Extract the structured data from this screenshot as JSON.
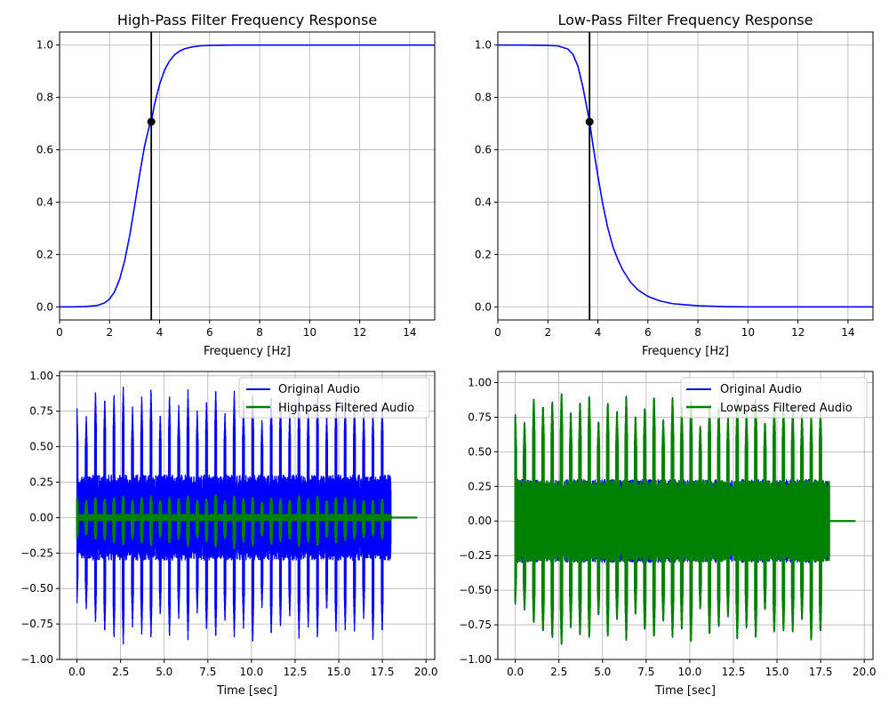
{
  "figure": {
    "background": "#ffffff"
  },
  "chart_data": [
    {
      "type": "line",
      "title": "High-Pass Filter Frequency Response",
      "xlabel": "Frequency [Hz]",
      "ylabel": "",
      "xlim": [
        0,
        15
      ],
      "ylim": [
        -0.05,
        1.05
      ],
      "xticks": [
        0,
        2,
        4,
        6,
        8,
        10,
        12,
        14
      ],
      "yticks": [
        0.0,
        0.2,
        0.4,
        0.6,
        0.8,
        1.0
      ],
      "grid": true,
      "cutoff_hz": 3.667,
      "cutoff_gain": 0.7071,
      "series": [
        {
          "color": "#0000ff",
          "x": [
            0,
            0.5,
            1.0,
            1.5,
            1.8,
            2.0,
            2.2,
            2.4,
            2.6,
            2.8,
            3.0,
            3.2,
            3.4,
            3.6,
            3.667,
            3.8,
            4.0,
            4.2,
            4.4,
            4.6,
            4.8,
            5.0,
            5.3,
            5.6,
            6.0,
            7.0,
            8.0,
            10.0,
            12.0,
            15.0
          ],
          "y": [
            0.0,
            0.0,
            0.001,
            0.005,
            0.015,
            0.03,
            0.058,
            0.105,
            0.175,
            0.27,
            0.385,
            0.505,
            0.615,
            0.695,
            0.7071,
            0.775,
            0.85,
            0.905,
            0.94,
            0.963,
            0.977,
            0.986,
            0.993,
            0.997,
            0.999,
            1.0,
            1.0,
            1.0,
            1.0,
            1.0
          ]
        }
      ]
    },
    {
      "type": "line",
      "title": "Low-Pass Filter Frequency Response",
      "xlabel": "Frequency [Hz]",
      "ylabel": "",
      "xlim": [
        0,
        15
      ],
      "ylim": [
        -0.05,
        1.05
      ],
      "xticks": [
        0,
        2,
        4,
        6,
        8,
        10,
        12,
        14
      ],
      "yticks": [
        0.0,
        0.2,
        0.4,
        0.6,
        0.8,
        1.0
      ],
      "grid": true,
      "cutoff_hz": 3.667,
      "cutoff_gain": 0.7071,
      "series": [
        {
          "color": "#0000ff",
          "x": [
            0,
            1.0,
            2.0,
            2.4,
            2.8,
            3.0,
            3.2,
            3.4,
            3.667,
            3.8,
            4.0,
            4.2,
            4.4,
            4.6,
            4.8,
            5.0,
            5.3,
            5.6,
            6.0,
            6.5,
            7.0,
            8.0,
            9.0,
            10.0,
            12.0,
            15.0
          ],
          "y": [
            1.0,
            1.0,
            0.999,
            0.997,
            0.985,
            0.965,
            0.92,
            0.84,
            0.7071,
            0.62,
            0.5,
            0.39,
            0.3,
            0.23,
            0.18,
            0.14,
            0.095,
            0.065,
            0.04,
            0.022,
            0.012,
            0.004,
            0.001,
            0.0,
            0.0,
            0.0
          ]
        }
      ]
    },
    {
      "type": "line",
      "title": "",
      "xlabel": "Time [sec]",
      "ylabel": "",
      "xlim": [
        -1.0,
        20.5
      ],
      "ylim": [
        -1.0,
        1.03
      ],
      "xticks": [
        0.0,
        2.5,
        5.0,
        7.5,
        10.0,
        12.5,
        15.0,
        17.5,
        20.0
      ],
      "xtick_labels": [
        "0.0",
        "2.5",
        "5.0",
        "7.5",
        "10.0",
        "12.5",
        "15.0",
        "17.5",
        "20.0"
      ],
      "yticks": [
        -1.0,
        -0.75,
        -0.5,
        -0.25,
        0.0,
        0.25,
        0.5,
        0.75,
        1.0
      ],
      "ytick_labels": [
        "−1.00",
        "−0.75",
        "−0.50",
        "−0.25",
        "0.00",
        "0.25",
        "0.50",
        "0.75",
        "1.00"
      ],
      "grid": true,
      "legend": "top-right",
      "signal_end": 18.0,
      "series": [
        {
          "name": "Original Audio",
          "color": "#0000ff",
          "noise_amp": 0.3,
          "pulse_times": [
            0.0,
            0.53,
            1.06,
            1.59,
            2.12,
            2.65,
            3.18,
            3.71,
            4.24,
            4.77,
            5.3,
            5.83,
            6.36,
            6.89,
            7.42,
            7.95,
            8.48,
            9.01,
            9.54,
            10.07,
            10.6,
            11.13,
            11.66,
            12.19,
            12.72,
            13.25,
            13.78,
            14.31,
            14.84,
            15.37,
            15.9,
            16.43,
            16.96,
            17.49
          ],
          "pulse_peaks": [
            0.77,
            0.72,
            0.9,
            0.85,
            0.88,
            0.93,
            0.78,
            0.86,
            0.92,
            0.74,
            0.87,
            0.8,
            0.9,
            0.76,
            0.83,
            0.92,
            0.75,
            0.9,
            0.82,
            0.87,
            0.7,
            0.87,
            0.84,
            0.76,
            0.88,
            0.8,
            0.9,
            0.73,
            0.86,
            0.85,
            0.83,
            0.78,
            0.77,
            0.82
          ],
          "pulse_troughs": [
            -0.6,
            -0.65,
            -0.75,
            -0.82,
            -0.86,
            -0.9,
            -0.77,
            -0.83,
            -0.86,
            -0.7,
            -0.85,
            -0.72,
            -0.86,
            -0.68,
            -0.8,
            -0.86,
            -0.74,
            -0.85,
            -0.78,
            -0.88,
            -0.65,
            -0.84,
            -0.78,
            -0.7,
            -0.85,
            -0.78,
            -0.86,
            -0.66,
            -0.82,
            -0.8,
            -0.8,
            -0.72,
            -0.88,
            -0.82
          ]
        },
        {
          "name": "Highpass Filtered Audio",
          "color": "#008000",
          "noise_amp": 0.02,
          "tail_end": 19.5,
          "pulse_peaks": [
            0.14,
            0.12,
            0.14,
            0.13,
            0.14,
            0.15,
            0.12,
            0.14,
            0.15,
            0.12,
            0.14,
            0.13,
            0.15,
            0.12,
            0.13,
            0.16,
            0.12,
            0.15,
            0.13,
            0.14,
            0.11,
            0.14,
            0.13,
            0.12,
            0.15,
            0.13,
            0.15,
            0.12,
            0.14,
            0.14,
            0.13,
            0.12,
            0.12,
            0.13
          ],
          "pulse_troughs": [
            -0.14,
            -0.12,
            -0.15,
            -0.16,
            -0.18,
            -0.19,
            -0.15,
            -0.18,
            -0.2,
            -0.14,
            -0.18,
            -0.15,
            -0.2,
            -0.14,
            -0.17,
            -0.21,
            -0.15,
            -0.22,
            -0.17,
            -0.2,
            -0.13,
            -0.19,
            -0.17,
            -0.15,
            -0.2,
            -0.17,
            -0.2,
            -0.14,
            -0.18,
            -0.16,
            -0.15,
            -0.14,
            -0.13,
            -0.15
          ]
        }
      ]
    },
    {
      "type": "line",
      "title": "",
      "xlabel": "Time [sec]",
      "ylabel": "",
      "xlim": [
        -1.0,
        20.5
      ],
      "ylim": [
        -1.0,
        1.08
      ],
      "xticks": [
        0.0,
        2.5,
        5.0,
        7.5,
        10.0,
        12.5,
        15.0,
        17.5,
        20.0
      ],
      "xtick_labels": [
        "0.0",
        "2.5",
        "5.0",
        "7.5",
        "10.0",
        "12.5",
        "15.0",
        "17.5",
        "20.0"
      ],
      "yticks": [
        -1.0,
        -0.75,
        -0.5,
        -0.25,
        0.0,
        0.25,
        0.5,
        0.75,
        1.0
      ],
      "ytick_labels": [
        "−1.00",
        "−0.75",
        "−0.50",
        "−0.25",
        "0.00",
        "0.25",
        "0.50",
        "0.75",
        "1.00"
      ],
      "grid": true,
      "legend": "top-right",
      "signal_end": 18.0,
      "series": [
        {
          "name": "Original Audio",
          "color": "#0000ff",
          "noise_amp": 0.3,
          "pulse_times": [
            0.0,
            0.53,
            1.06,
            1.59,
            2.12,
            2.65,
            3.18,
            3.71,
            4.24,
            4.77,
            5.3,
            5.83,
            6.36,
            6.89,
            7.42,
            7.95,
            8.48,
            9.01,
            9.54,
            10.07,
            10.6,
            11.13,
            11.66,
            12.19,
            12.72,
            13.25,
            13.78,
            14.31,
            14.84,
            15.37,
            15.9,
            16.43,
            16.96,
            17.49
          ],
          "pulse_peaks": [
            0.77,
            0.72,
            0.9,
            0.85,
            0.88,
            0.93,
            0.78,
            0.86,
            0.92,
            0.74,
            0.87,
            0.8,
            0.9,
            0.76,
            0.83,
            0.92,
            0.75,
            0.9,
            0.82,
            0.87,
            0.7,
            0.87,
            0.84,
            0.76,
            0.88,
            0.8,
            0.9,
            0.73,
            0.86,
            0.85,
            0.83,
            0.78,
            0.77,
            0.82
          ],
          "pulse_troughs": [
            -0.6,
            -0.65,
            -0.75,
            -0.82,
            -0.86,
            -0.9,
            -0.77,
            -0.83,
            -0.86,
            -0.7,
            -0.85,
            -0.72,
            -0.86,
            -0.68,
            -0.8,
            -0.86,
            -0.74,
            -0.85,
            -0.78,
            -0.88,
            -0.65,
            -0.84,
            -0.78,
            -0.7,
            -0.85,
            -0.78,
            -0.86,
            -0.66,
            -0.82,
            -0.8,
            -0.8,
            -0.72,
            -0.88,
            -0.82
          ]
        },
        {
          "name": "Lowpass Filtered Audio",
          "color": "#008000",
          "noise_amp": 0.29,
          "tail_end": 19.5,
          "pulse_peaks": [
            0.75,
            0.71,
            0.89,
            0.84,
            0.87,
            0.92,
            0.77,
            0.85,
            0.91,
            0.73,
            0.86,
            0.79,
            0.89,
            0.75,
            0.82,
            0.91,
            0.74,
            0.89,
            0.81,
            0.86,
            0.69,
            0.86,
            0.83,
            0.75,
            0.87,
            0.79,
            0.89,
            0.72,
            0.85,
            0.84,
            0.82,
            0.77,
            0.76,
            0.81
          ],
          "pulse_troughs": [
            -0.58,
            -0.64,
            -0.74,
            -0.81,
            -0.85,
            -0.89,
            -0.76,
            -0.82,
            -0.85,
            -0.69,
            -0.84,
            -0.71,
            -0.85,
            -0.67,
            -0.79,
            -0.85,
            -0.73,
            -0.84,
            -0.77,
            -0.87,
            -0.64,
            -0.83,
            -0.77,
            -0.69,
            -0.84,
            -0.77,
            -0.85,
            -0.65,
            -0.81,
            -0.79,
            -0.79,
            -0.71,
            -0.87,
            -0.81
          ]
        }
      ]
    }
  ]
}
